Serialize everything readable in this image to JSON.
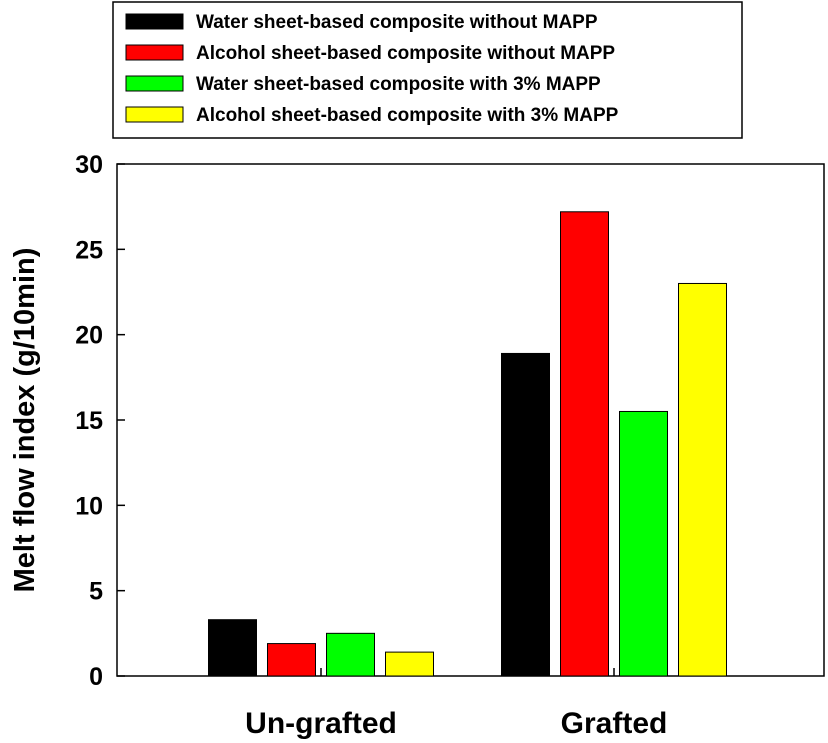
{
  "chart_data": {
    "type": "bar",
    "title": "",
    "xlabel": "",
    "ylabel": "Melt flow index (g/10min)",
    "categories": [
      "Un-grafted",
      "Grafted"
    ],
    "ylim": [
      0,
      30
    ],
    "yticks": [
      0,
      5,
      10,
      15,
      20,
      25,
      30
    ],
    "grid": false,
    "legend_position": "top-center, above plot",
    "series": [
      {
        "name": "Water sheet-based composite without MAPP",
        "color": "#000000",
        "values": [
          3.3,
          18.9
        ]
      },
      {
        "name": "Alcohol sheet-based composite without MAPP",
        "color": "#ff0000",
        "values": [
          1.9,
          27.2
        ]
      },
      {
        "name": "Water sheet-based composite with 3% MAPP",
        "color": "#00ff00",
        "values": [
          2.5,
          15.5
        ]
      },
      {
        "name": "Alcohol sheet-based composite with 3% MAPP",
        "color": "#ffff00",
        "values": [
          1.4,
          23.0
        ]
      }
    ]
  }
}
